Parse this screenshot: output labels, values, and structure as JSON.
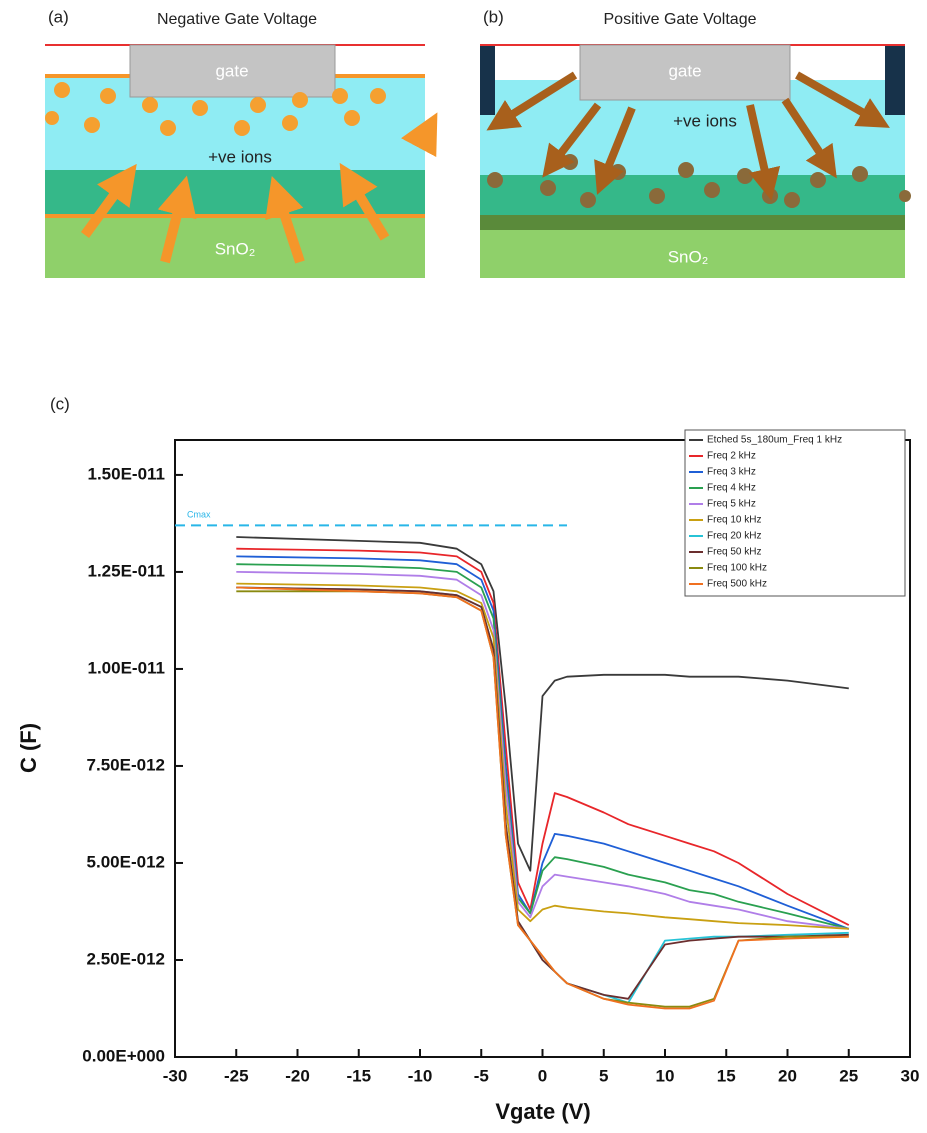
{
  "diagrams": [
    {
      "label": "(a)",
      "title": "Negative Gate Voltage",
      "gate": "gate",
      "ions": "+ve ions",
      "substrate": "SnO₂"
    },
    {
      "label": "(b)",
      "title": "Positive Gate Voltage",
      "gate": "gate",
      "ions": "+ve ions",
      "substrate": "SnO₂"
    }
  ],
  "chart_data": {
    "type": "line",
    "label": "(c)",
    "x_label": "Vgate (V)",
    "y_label": "C (F)",
    "xlim": [
      -30,
      30
    ],
    "ylim": [
      0,
      1.59e-11
    ],
    "xticks": [
      -30,
      -25,
      -20,
      -15,
      -10,
      -5,
      0,
      5,
      10,
      15,
      20,
      25,
      30
    ],
    "yticks": [
      {
        "value": 0,
        "label": "0.00E+000"
      },
      {
        "value": 2.5e-12,
        "label": "2.50E-012"
      },
      {
        "value": 5e-12,
        "label": "5.00E-012"
      },
      {
        "value": 7.5e-12,
        "label": "7.50E-012"
      },
      {
        "value": 1e-11,
        "label": "1.00E-011"
      },
      {
        "value": 1.25e-11,
        "label": "1.25E-011"
      },
      {
        "value": 1.5e-11,
        "label": "1.50E-011"
      }
    ],
    "grid": false,
    "legend": "top-right",
    "annotations": [
      {
        "text": "Cmax",
        "value": 1.37e-11,
        "x": [
          -30,
          2
        ],
        "color": "#29b6e8"
      }
    ],
    "x": [
      -25,
      -15,
      -10,
      -7,
      -5,
      -4,
      -3,
      -2,
      -1,
      0,
      1,
      2,
      5,
      7,
      10,
      12,
      14,
      16,
      20,
      25
    ],
    "series": [
      {
        "name": "Etched 5s_180um_Freq 1 kHz",
        "color": "#3a3a3a",
        "values": [
          1.34e-11,
          1.33e-11,
          1.325e-11,
          1.31e-11,
          1.27e-11,
          1.2e-11,
          9e-12,
          5.5e-12,
          4.8e-12,
          9.3e-12,
          9.7e-12,
          9.8e-12,
          9.85e-12,
          9.85e-12,
          9.85e-12,
          9.8e-12,
          9.8e-12,
          9.8e-12,
          9.7e-12,
          9.5e-12
        ]
      },
      {
        "name": "Freq 2 kHz",
        "color": "#e8262a",
        "values": [
          1.31e-11,
          1.305e-11,
          1.3e-11,
          1.29e-11,
          1.25e-11,
          1.17e-11,
          8e-12,
          4.5e-12,
          3.8e-12,
          5.5e-12,
          6.8e-12,
          6.7e-12,
          6.3e-12,
          6e-12,
          5.7e-12,
          5.5e-12,
          5.3e-12,
          5e-12,
          4.2e-12,
          3.4e-12
        ]
      },
      {
        "name": "Freq 3 kHz",
        "color": "#1f5fd6",
        "values": [
          1.29e-11,
          1.285e-11,
          1.28e-11,
          1.27e-11,
          1.23e-11,
          1.15e-11,
          7.5e-12,
          4.2e-12,
          3.7e-12,
          5e-12,
          5.75e-12,
          5.7e-12,
          5.5e-12,
          5.3e-12,
          5e-12,
          4.8e-12,
          4.6e-12,
          4.4e-12,
          3.9e-12,
          3.3e-12
        ]
      },
      {
        "name": "Freq 4 kHz",
        "color": "#2aa050",
        "values": [
          1.27e-11,
          1.265e-11,
          1.26e-11,
          1.25e-11,
          1.21e-11,
          1.13e-11,
          7.2e-12,
          4.1e-12,
          3.7e-12,
          4.8e-12,
          5.15e-12,
          5.1e-12,
          4.9e-12,
          4.7e-12,
          4.5e-12,
          4.3e-12,
          4.2e-12,
          4e-12,
          3.7e-12,
          3.3e-12
        ]
      },
      {
        "name": "Freq 5 kHz",
        "color": "#b07ee8",
        "values": [
          1.25e-11,
          1.245e-11,
          1.24e-11,
          1.23e-11,
          1.19e-11,
          1.1e-11,
          7e-12,
          4e-12,
          3.6e-12,
          4.4e-12,
          4.7e-12,
          4.65e-12,
          4.5e-12,
          4.4e-12,
          4.2e-12,
          4e-12,
          3.9e-12,
          3.8e-12,
          3.5e-12,
          3.3e-12
        ]
      },
      {
        "name": "Freq 10 kHz",
        "color": "#c9a012",
        "values": [
          1.22e-11,
          1.215e-11,
          1.21e-11,
          1.2e-11,
          1.17e-11,
          1.08e-11,
          6.5e-12,
          3.8e-12,
          3.5e-12,
          3.8e-12,
          3.9e-12,
          3.85e-12,
          3.75e-12,
          3.7e-12,
          3.6e-12,
          3.55e-12,
          3.5e-12,
          3.45e-12,
          3.4e-12,
          3.3e-12
        ]
      },
      {
        "name": "Freq 20 kHz",
        "color": "#27c3d6",
        "values": [
          1.21e-11,
          1.205e-11,
          1.2e-11,
          1.19e-11,
          1.16e-11,
          1.05e-11,
          6e-12,
          3.5e-12,
          3e-12,
          2.5e-12,
          2.2e-12,
          1.9e-12,
          1.6e-12,
          1.4e-12,
          3e-12,
          3.05e-12,
          3.1e-12,
          3.1e-12,
          3.15e-12,
          3.2e-12
        ]
      },
      {
        "name": "Freq 50 kHz",
        "color": "#6b2e2e",
        "values": [
          1.21e-11,
          1.205e-11,
          1.2e-11,
          1.19e-11,
          1.16e-11,
          1.05e-11,
          6e-12,
          3.5e-12,
          3e-12,
          2.5e-12,
          2.2e-12,
          1.9e-12,
          1.6e-12,
          1.5e-12,
          2.9e-12,
          3e-12,
          3.05e-12,
          3.1e-12,
          3.1e-12,
          3.15e-12
        ]
      },
      {
        "name": "Freq 100 kHz",
        "color": "#8a8a10",
        "values": [
          1.2e-11,
          1.2e-11,
          1.195e-11,
          1.185e-11,
          1.15e-11,
          1.03e-11,
          5.7e-12,
          3.4e-12,
          3e-12,
          2.6e-12,
          2.2e-12,
          1.9e-12,
          1.5e-12,
          1.4e-12,
          1.3e-12,
          1.3e-12,
          1.5e-12,
          3e-12,
          3.1e-12,
          3.1e-12
        ]
      },
      {
        "name": "Freq 500 kHz",
        "color": "#f07020",
        "values": [
          1.21e-11,
          1.2e-11,
          1.195e-11,
          1.185e-11,
          1.15e-11,
          1.03e-11,
          5.7e-12,
          3.4e-12,
          3e-12,
          2.6e-12,
          2.2e-12,
          1.9e-12,
          1.5e-12,
          1.35e-12,
          1.25e-12,
          1.25e-12,
          1.45e-12,
          3e-12,
          3.05e-12,
          3.1e-12
        ]
      }
    ]
  }
}
